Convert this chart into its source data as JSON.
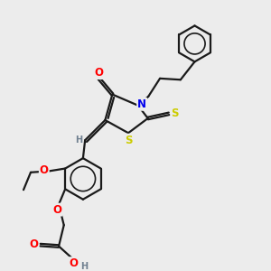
{
  "bg_color": "#ececec",
  "bond_color": "#1a1a1a",
  "bond_width": 1.6,
  "atom_colors": {
    "O": "#ff0000",
    "N": "#0000ee",
    "S": "#cccc00",
    "C": "#1a1a1a",
    "H": "#708090"
  },
  "font_size": 8.5,
  "font_size_H": 7.0
}
